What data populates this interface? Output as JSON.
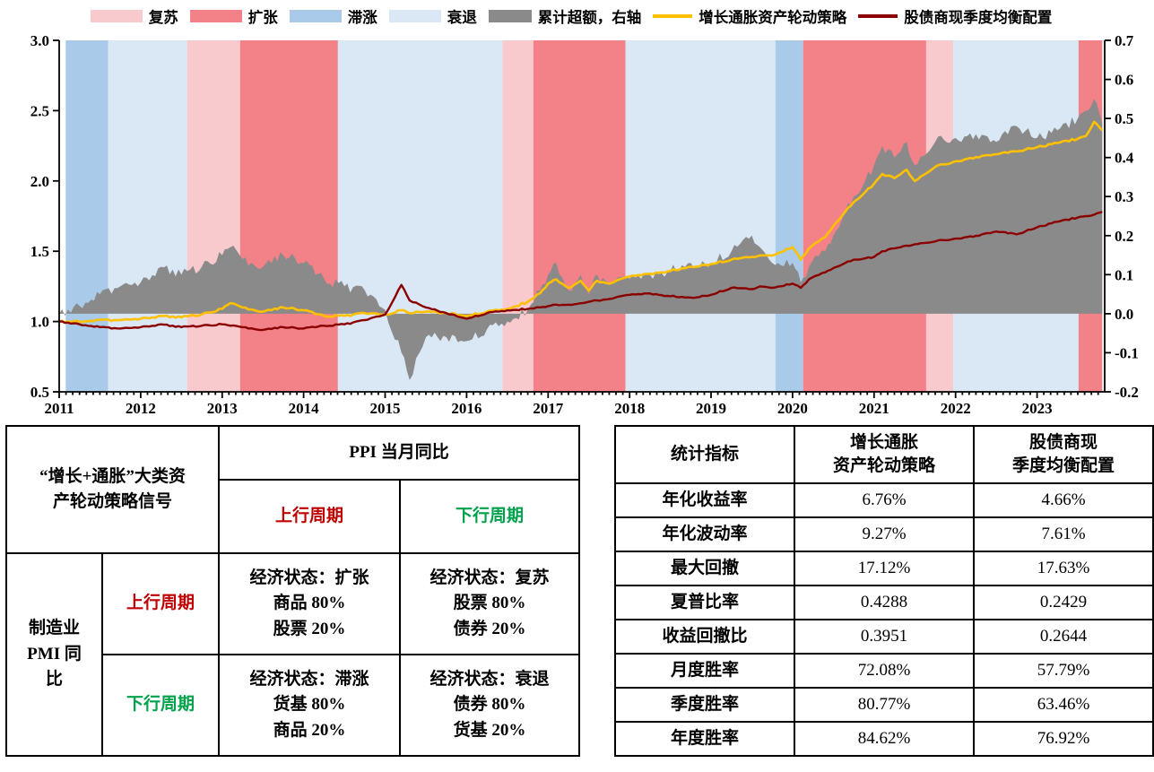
{
  "chart": {
    "legend": [
      {
        "label": "复苏",
        "type": "band",
        "color": "#F8C9CD"
      },
      {
        "label": "扩张",
        "type": "band",
        "color": "#F38288"
      },
      {
        "label": "滞涨",
        "type": "band",
        "color": "#A9CBE9"
      },
      {
        "label": "衰退",
        "type": "band",
        "color": "#DAE7F5"
      },
      {
        "label": "累计超额，右轴",
        "type": "area",
        "color": "#8A8A8A"
      },
      {
        "label": "增长通胀资产轮动策略",
        "type": "line",
        "color": "#FFC000"
      },
      {
        "label": "股债商现季度均衡配置",
        "type": "line",
        "color": "#8B0000"
      }
    ],
    "regime_colors": {
      "复苏": "#F8C9CD",
      "扩张": "#F38288",
      "滞涨": "#A9CBE9",
      "衰退": "#DAE7F5"
    }
  },
  "chart_data": {
    "type": "line",
    "title": "",
    "x_range": [
      2011,
      2023.83
    ],
    "x_ticks": [
      2011,
      2012,
      2013,
      2014,
      2015,
      2016,
      2017,
      2018,
      2019,
      2020,
      2021,
      2022,
      2023
    ],
    "left_axis": {
      "min": 0.5,
      "max": 3.0,
      "ticks": [
        3.0,
        2.5,
        2.0,
        1.5,
        1.0,
        0.5
      ]
    },
    "right_axis": {
      "min": -0.2,
      "max": 0.7,
      "ticks": [
        0.7,
        0.6,
        0.5,
        0.4,
        0.3,
        0.2,
        0.1,
        0.0,
        -0.1,
        -0.2
      ]
    },
    "bands": [
      {
        "start": 2011.08,
        "end": 2011.6,
        "regime": "滞涨"
      },
      {
        "start": 2011.6,
        "end": 2012.57,
        "regime": "衰退"
      },
      {
        "start": 2012.57,
        "end": 2013.22,
        "regime": "复苏"
      },
      {
        "start": 2013.22,
        "end": 2014.42,
        "regime": "扩张"
      },
      {
        "start": 2014.42,
        "end": 2016.44,
        "regime": "衰退"
      },
      {
        "start": 2016.44,
        "end": 2016.82,
        "regime": "复苏"
      },
      {
        "start": 2016.82,
        "end": 2017.95,
        "regime": "扩张"
      },
      {
        "start": 2017.95,
        "end": 2019.79,
        "regime": "衰退"
      },
      {
        "start": 2019.79,
        "end": 2020.13,
        "regime": "滞涨"
      },
      {
        "start": 2020.13,
        "end": 2021.64,
        "regime": "扩张"
      },
      {
        "start": 2021.64,
        "end": 2021.97,
        "regime": "复苏"
      },
      {
        "start": 2021.97,
        "end": 2023.51,
        "regime": "衰退"
      },
      {
        "start": 2023.51,
        "end": 2023.8,
        "regime": "扩张"
      }
    ],
    "x": [
      2011.0,
      2011.25,
      2011.5,
      2011.75,
      2012.0,
      2012.25,
      2012.5,
      2012.75,
      2013.0,
      2013.1,
      2013.25,
      2013.5,
      2013.75,
      2014.0,
      2014.25,
      2014.5,
      2014.75,
      2015.0,
      2015.2,
      2015.3,
      2015.5,
      2015.75,
      2016.0,
      2016.25,
      2016.5,
      2016.75,
      2016.9,
      2017.0,
      2017.1,
      2017.25,
      2017.4,
      2017.5,
      2017.6,
      2017.75,
      2018.0,
      2018.25,
      2018.5,
      2018.75,
      2019.0,
      2019.25,
      2019.5,
      2019.6,
      2019.75,
      2020.0,
      2020.1,
      2020.2,
      2020.4,
      2020.5,
      2020.75,
      2021.0,
      2021.1,
      2021.25,
      2021.4,
      2021.5,
      2021.75,
      2022.0,
      2022.25,
      2022.5,
      2022.75,
      2023.0,
      2023.25,
      2023.5,
      2023.6,
      2023.7,
      2023.8
    ],
    "series": [
      {
        "name": "增长通胀资产轮动策略",
        "axis": "left",
        "render": "line",
        "color": "#FFC000",
        "values": [
          1.0,
          1.0,
          1.01,
          1.01,
          1.02,
          1.04,
          1.03,
          1.05,
          1.09,
          1.13,
          1.1,
          1.07,
          1.1,
          1.08,
          1.04,
          1.04,
          1.06,
          1.05,
          1.08,
          1.06,
          1.07,
          1.06,
          1.04,
          1.07,
          1.09,
          1.14,
          1.2,
          1.27,
          1.3,
          1.24,
          1.29,
          1.22,
          1.29,
          1.27,
          1.32,
          1.34,
          1.36,
          1.39,
          1.41,
          1.44,
          1.46,
          1.47,
          1.47,
          1.53,
          1.44,
          1.52,
          1.6,
          1.68,
          1.85,
          1.98,
          2.05,
          2.02,
          2.08,
          2.0,
          2.1,
          2.14,
          2.17,
          2.19,
          2.21,
          2.24,
          2.27,
          2.3,
          2.32,
          2.42,
          2.36
        ]
      },
      {
        "name": "股债商现季度均衡配置",
        "axis": "left",
        "render": "line",
        "color": "#8B0000",
        "values": [
          1.0,
          0.98,
          0.96,
          0.95,
          0.96,
          0.98,
          0.96,
          0.97,
          0.98,
          0.97,
          0.96,
          0.94,
          0.96,
          0.95,
          0.97,
          0.98,
          1.01,
          1.05,
          1.26,
          1.15,
          1.1,
          1.06,
          1.02,
          1.06,
          1.08,
          1.09,
          1.1,
          1.11,
          1.12,
          1.12,
          1.13,
          1.14,
          1.15,
          1.16,
          1.19,
          1.2,
          1.18,
          1.17,
          1.19,
          1.24,
          1.23,
          1.25,
          1.24,
          1.27,
          1.24,
          1.3,
          1.35,
          1.38,
          1.44,
          1.46,
          1.5,
          1.52,
          1.54,
          1.55,
          1.57,
          1.59,
          1.61,
          1.64,
          1.62,
          1.67,
          1.71,
          1.74,
          1.75,
          1.76,
          1.78
        ]
      },
      {
        "name": "累计超额，右轴",
        "axis": "right",
        "render": "area",
        "color": "#8A8A8A",
        "values": [
          0.0,
          0.02,
          0.05,
          0.07,
          0.08,
          0.12,
          0.1,
          0.12,
          0.15,
          0.17,
          0.14,
          0.12,
          0.15,
          0.13,
          0.09,
          0.07,
          0.06,
          0.01,
          -0.1,
          -0.17,
          -0.06,
          -0.06,
          -0.07,
          -0.04,
          -0.02,
          0.01,
          0.06,
          0.1,
          0.13,
          0.06,
          0.1,
          0.05,
          0.1,
          0.08,
          0.09,
          0.1,
          0.11,
          0.13,
          0.13,
          0.16,
          0.2,
          0.17,
          0.13,
          0.13,
          0.08,
          0.12,
          0.16,
          0.2,
          0.3,
          0.38,
          0.43,
          0.4,
          0.44,
          0.38,
          0.44,
          0.45,
          0.46,
          0.44,
          0.48,
          0.45,
          0.47,
          0.5,
          0.52,
          0.55,
          0.49
        ]
      }
    ]
  },
  "left_table": {
    "corner_header": "“增长+通胀”大类资\n产轮动策略信号",
    "ppi_header": "PPI 当月同比",
    "up_header": "上行周期",
    "down_header": "下行周期",
    "row_header": "制造业\nPMI 同\n比",
    "row1_label": "上行周期",
    "row2_label": "下行周期",
    "cells": {
      "up_up": "经济状态：扩张\n商品 80%\n股票 20%",
      "up_down": "经济状态：复苏\n股票 80%\n债券 20%",
      "down_up": "经济状态：滞涨\n货基 80%\n商品 20%",
      "down_down": "经济状态：衰退\n债券 80%\n货基 20%"
    }
  },
  "right_table": {
    "headers": [
      "统计指标",
      "增长通胀\n资产轮动策略",
      "股债商现\n季度均衡配置"
    ],
    "rows": [
      {
        "label": "年化收益率",
        "strategy": "6.76%",
        "benchmark": "4.66%"
      },
      {
        "label": "年化波动率",
        "strategy": "9.27%",
        "benchmark": "7.61%"
      },
      {
        "label": "最大回撤",
        "strategy": "17.12%",
        "benchmark": "17.63%"
      },
      {
        "label": "夏普比率",
        "strategy": "0.4288",
        "benchmark": "0.2429"
      },
      {
        "label": "收益回撤比",
        "strategy": "0.3951",
        "benchmark": "0.2644"
      },
      {
        "label": "月度胜率",
        "strategy": "72.08%",
        "benchmark": "57.79%"
      },
      {
        "label": "季度胜率",
        "strategy": "80.77%",
        "benchmark": "63.46%"
      },
      {
        "label": "年度胜率",
        "strategy": "84.62%",
        "benchmark": "76.92%"
      }
    ]
  }
}
